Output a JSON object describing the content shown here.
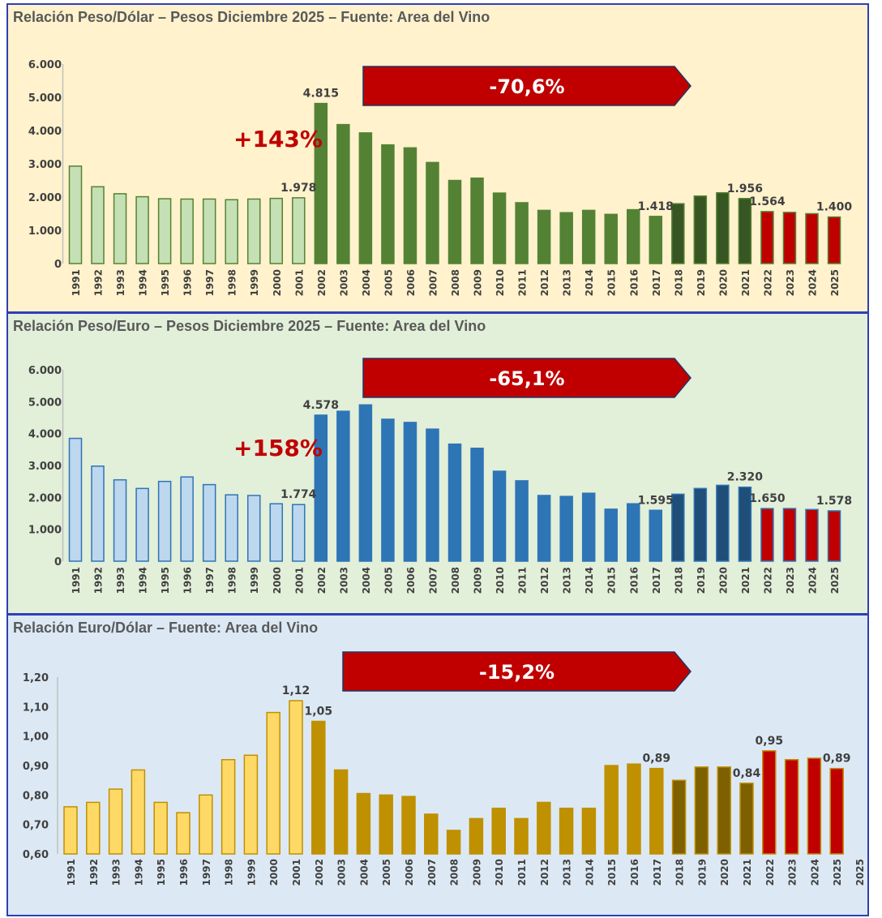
{
  "chart_data": [
    {
      "type": "bar",
      "title": "Relación Peso/Dólar – Pesos Diciembre 2025 – Fuente: Area del Vino",
      "categories": [
        "1991",
        "1992",
        "1993",
        "1994",
        "1995",
        "1996",
        "1997",
        "1998",
        "1999",
        "2000",
        "2001",
        "2002",
        "2003",
        "2004",
        "2005",
        "2006",
        "2007",
        "2008",
        "2009",
        "2010",
        "2011",
        "2012",
        "2013",
        "2014",
        "2015",
        "2016",
        "2017",
        "2018",
        "2019",
        "2020",
        "2021",
        "2022",
        "2023",
        "2024",
        "2025"
      ],
      "values": [
        2930,
        2310,
        2100,
        2010,
        1950,
        1940,
        1940,
        1920,
        1940,
        1960,
        1978,
        4815,
        4180,
        3930,
        3570,
        3480,
        3040,
        2500,
        2570,
        2120,
        1830,
        1600,
        1530,
        1600,
        1480,
        1620,
        1418,
        1800,
        2030,
        2130,
        1956,
        1564,
        1540,
        1500,
        1400
      ],
      "ylim": [
        0,
        6000
      ],
      "yticks": [
        "0",
        "1.000",
        "2.000",
        "3.000",
        "4.000",
        "5.000",
        "6.000"
      ],
      "bar_colors": [
        "#c5e0b4",
        "#c5e0b4",
        "#c5e0b4",
        "#c5e0b4",
        "#c5e0b4",
        "#c5e0b4",
        "#c5e0b4",
        "#c5e0b4",
        "#c5e0b4",
        "#c5e0b4",
        "#c5e0b4",
        "#548235",
        "#548235",
        "#548235",
        "#548235",
        "#548235",
        "#548235",
        "#548235",
        "#548235",
        "#548235",
        "#548235",
        "#548235",
        "#548235",
        "#548235",
        "#548235",
        "#548235",
        "#548235",
        "#375623",
        "#375623",
        "#375623",
        "#375623",
        "#c00000",
        "#c00000",
        "#c00000",
        "#c00000"
      ],
      "bar_stroke": "#548235",
      "data_labels": [
        {
          "index": 10,
          "text": "1.978"
        },
        {
          "index": 11,
          "text": "4.815"
        },
        {
          "index": 26,
          "text": "1.418"
        },
        {
          "index": 30,
          "text": "1.956"
        },
        {
          "index": 31,
          "text": "1.564"
        },
        {
          "index": 34,
          "text": "1.400"
        }
      ],
      "change_label": "+143%",
      "arrow_label": "-70,6%"
    },
    {
      "type": "bar",
      "title": "Relación Peso/Euro – Pesos Diciembre 2025 – Fuente: Area del Vino",
      "categories": [
        "1991",
        "1992",
        "1993",
        "1994",
        "1995",
        "1996",
        "1997",
        "1998",
        "1999",
        "2000",
        "2001",
        "2002",
        "2003",
        "2004",
        "2005",
        "2006",
        "2007",
        "2008",
        "2009",
        "2010",
        "2011",
        "2012",
        "2013",
        "2014",
        "2015",
        "2016",
        "2017",
        "2018",
        "2019",
        "2020",
        "2021",
        "2022",
        "2023",
        "2024",
        "2025"
      ],
      "values": [
        3850,
        2980,
        2550,
        2280,
        2500,
        2640,
        2400,
        2080,
        2060,
        1800,
        1774,
        4578,
        4700,
        4900,
        4450,
        4350,
        4140,
        3670,
        3540,
        2820,
        2520,
        2060,
        2030,
        2130,
        1630,
        1800,
        1595,
        2100,
        2280,
        2380,
        2320,
        1650,
        1650,
        1620,
        1578
      ],
      "ylim": [
        0,
        6000
      ],
      "yticks": [
        "0",
        "1.000",
        "2.000",
        "3.000",
        "4.000",
        "5.000",
        "6.000"
      ],
      "bar_colors": [
        "#bdd7ee",
        "#bdd7ee",
        "#bdd7ee",
        "#bdd7ee",
        "#bdd7ee",
        "#bdd7ee",
        "#bdd7ee",
        "#bdd7ee",
        "#bdd7ee",
        "#bdd7ee",
        "#bdd7ee",
        "#2e75b6",
        "#2e75b6",
        "#2e75b6",
        "#2e75b6",
        "#2e75b6",
        "#2e75b6",
        "#2e75b6",
        "#2e75b6",
        "#2e75b6",
        "#2e75b6",
        "#2e75b6",
        "#2e75b6",
        "#2e75b6",
        "#2e75b6",
        "#2e75b6",
        "#2e75b6",
        "#1f4e79",
        "#1f4e79",
        "#1f4e79",
        "#1f4e79",
        "#c00000",
        "#c00000",
        "#c00000",
        "#c00000"
      ],
      "bar_stroke": "#2e75b6",
      "data_labels": [
        {
          "index": 10,
          "text": "1.774"
        },
        {
          "index": 11,
          "text": "4.578"
        },
        {
          "index": 26,
          "text": "1.595"
        },
        {
          "index": 30,
          "text": "2.320"
        },
        {
          "index": 31,
          "text": "1.650"
        },
        {
          "index": 34,
          "text": "1.578"
        }
      ],
      "change_label": "+158%",
      "arrow_label": "-65,1%"
    },
    {
      "type": "bar",
      "title": "Relación Euro/Dólar – Fuente: Area del Vino",
      "categories": [
        "1991",
        "1992",
        "1993",
        "1994",
        "1995",
        "1996",
        "1997",
        "1998",
        "1999",
        "2000",
        "2001",
        "2002",
        "2003",
        "2004",
        "2005",
        "2006",
        "2007",
        "2008",
        "2009",
        "2010",
        "2011",
        "2012",
        "2013",
        "2014",
        "2015",
        "2016",
        "2017",
        "2018",
        "2019",
        "2020",
        "2021",
        "2022",
        "2023",
        "2024",
        "2025"
      ],
      "values": [
        0.76,
        0.775,
        0.82,
        0.885,
        0.775,
        0.74,
        0.8,
        0.92,
        0.935,
        1.08,
        1.12,
        1.05,
        0.885,
        0.805,
        0.8,
        0.795,
        0.735,
        0.68,
        0.72,
        0.755,
        0.72,
        0.775,
        0.755,
        0.755,
        0.9,
        0.905,
        0.89,
        0.85,
        0.895,
        0.895,
        0.84,
        0.95,
        0.92,
        0.925,
        0.89
      ],
      "ylim": [
        0.6,
        1.2
      ],
      "yticks": [
        "0,60",
        "0,70",
        "0,80",
        "0,90",
        "1,00",
        "1,10",
        "1,20"
      ],
      "bar_colors": [
        "#ffd966",
        "#ffd966",
        "#ffd966",
        "#ffd966",
        "#ffd966",
        "#ffd966",
        "#ffd966",
        "#ffd966",
        "#ffd966",
        "#ffd966",
        "#ffd966",
        "#bf9000",
        "#bf9000",
        "#bf9000",
        "#bf9000",
        "#bf9000",
        "#bf9000",
        "#bf9000",
        "#bf9000",
        "#bf9000",
        "#bf9000",
        "#bf9000",
        "#bf9000",
        "#bf9000",
        "#bf9000",
        "#bf9000",
        "#bf9000",
        "#7f6000",
        "#7f6000",
        "#7f6000",
        "#7f6000",
        "#c00000",
        "#c00000",
        "#c00000",
        "#c00000"
      ],
      "bar_stroke": "#bf9000",
      "data_labels": [
        {
          "index": 10,
          "text": "1,12"
        },
        {
          "index": 11,
          "text": "1,05"
        },
        {
          "index": 26,
          "text": "0,89"
        },
        {
          "index": 30,
          "text": "0,84"
        },
        {
          "index": 31,
          "text": "0,95"
        },
        {
          "index": 34,
          "text": "0,89"
        }
      ],
      "change_label": "",
      "arrow_label": "-15,2%",
      "extra_xtick": "2025"
    }
  ]
}
